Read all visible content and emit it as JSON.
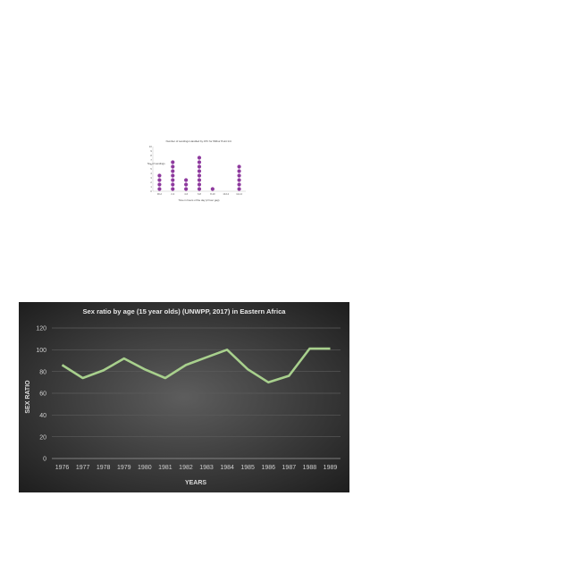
{
  "chart_data": [
    {
      "type": "scatter",
      "subtype": "dot-plot",
      "title": "Number of Landings Handled by ATC for Wilbur Point Intl.",
      "xlabel": "Time in hours of the day (2 hour gap)",
      "ylabel": "No. of Landings",
      "categories": [
        "00-2",
        "2-4",
        "4-6",
        "6-8",
        "8-10",
        "10-12",
        "12-14"
      ],
      "values": [
        4,
        7,
        3,
        8,
        1,
        0,
        6
      ],
      "yticks": [
        "0",
        "1",
        "2",
        "3",
        "4",
        "5",
        "6",
        "7",
        "8",
        "9",
        "10"
      ],
      "ylim": [
        0,
        10
      ],
      "dot_color": "#8e3a9e",
      "grid": false
    },
    {
      "type": "line",
      "title": "Sex ratio by age (15 year olds) (UNWPP, 2017) in Eastern Africa",
      "xlabel": "YEARS",
      "ylabel": "SEX RATIO",
      "categories": [
        "1976",
        "1977",
        "1978",
        "1979",
        "1980",
        "1981",
        "1982",
        "1983",
        "1984",
        "1985",
        "1986",
        "1987",
        "1988",
        "1989"
      ],
      "series": [
        {
          "name": "",
          "values": [
            86,
            74,
            81,
            92,
            82,
            74,
            86,
            93,
            100,
            82,
            70,
            76,
            101,
            101
          ]
        }
      ],
      "yticks": [
        "0",
        "20",
        "40",
        "60",
        "80",
        "100",
        "120"
      ],
      "ylim": [
        0,
        120
      ],
      "line_color": "#a8d08d",
      "grid": true
    }
  ]
}
